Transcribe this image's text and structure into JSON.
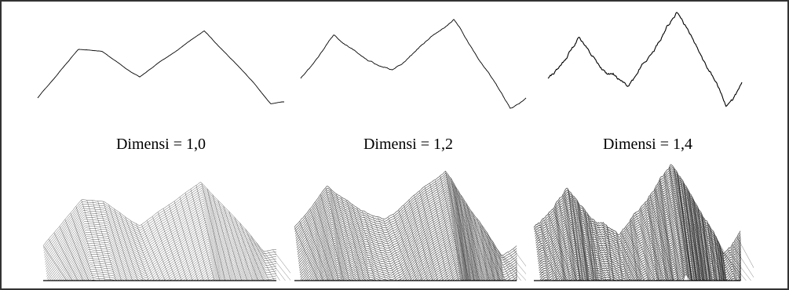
{
  "labels": [
    "Dimensi = 1,0",
    "Dimensi = 1,2",
    "Dimensi = 1,4"
  ]
}
